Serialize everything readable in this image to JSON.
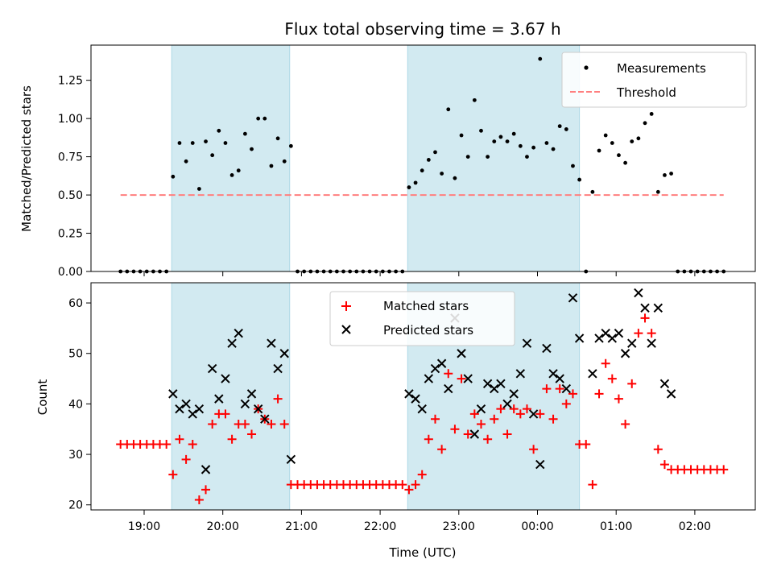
{
  "chart_data": [
    {
      "type": "scatter",
      "title": "Flux total observing time = 3.67 h",
      "ylabel": "Matched/Predicted stars",
      "xlabel": "",
      "ylim": [
        0,
        1.48
      ],
      "yticks": [
        "0.00",
        "0.25",
        "0.50",
        "0.75",
        "1.00",
        "1.25"
      ],
      "legend": {
        "position": "top-right",
        "entries": [
          "Measurements",
          "Threshold"
        ]
      },
      "threshold": 0.5,
      "colors": {
        "points": "#000000",
        "threshold": "#ff7f7f",
        "shade": "#add8e6"
      },
      "shaded_intervals": [
        [
          "19:21",
          "20:51"
        ],
        [
          "22:21",
          "00:32"
        ]
      ],
      "series": [
        {
          "name": "Measurements",
          "points": [
            [
              "18:42",
              0
            ],
            [
              "18:47",
              0
            ],
            [
              "18:52",
              0
            ],
            [
              "18:57",
              0
            ],
            [
              "19:02",
              0
            ],
            [
              "19:07",
              0
            ],
            [
              "19:12",
              0
            ],
            [
              "19:17",
              0
            ],
            [
              "19:22",
              0.62
            ],
            [
              "19:27",
              0.84
            ],
            [
              "19:32",
              0.72
            ],
            [
              "19:37",
              0.84
            ],
            [
              "19:42",
              0.54
            ],
            [
              "19:47",
              0.85
            ],
            [
              "19:52",
              0.76
            ],
            [
              "19:57",
              0.92
            ],
            [
              "20:02",
              0.84
            ],
            [
              "20:07",
              0.63
            ],
            [
              "20:12",
              0.66
            ],
            [
              "20:17",
              0.9
            ],
            [
              "20:22",
              0.8
            ],
            [
              "20:27",
              1.0
            ],
            [
              "20:32",
              1.0
            ],
            [
              "20:37",
              0.69
            ],
            [
              "20:42",
              0.87
            ],
            [
              "20:47",
              0.72
            ],
            [
              "20:52",
              0.82
            ],
            [
              "20:57",
              0
            ],
            [
              "21:02",
              0
            ],
            [
              "21:07",
              0
            ],
            [
              "21:12",
              0
            ],
            [
              "21:17",
              0
            ],
            [
              "21:22",
              0
            ],
            [
              "21:27",
              0
            ],
            [
              "21:32",
              0
            ],
            [
              "21:37",
              0
            ],
            [
              "21:42",
              0
            ],
            [
              "21:47",
              0
            ],
            [
              "21:52",
              0
            ],
            [
              "21:57",
              0
            ],
            [
              "22:02",
              0
            ],
            [
              "22:07",
              0
            ],
            [
              "22:12",
              0
            ],
            [
              "22:17",
              0
            ],
            [
              "22:22",
              0.55
            ],
            [
              "22:27",
              0.58
            ],
            [
              "22:32",
              0.66
            ],
            [
              "22:37",
              0.73
            ],
            [
              "22:42",
              0.78
            ],
            [
              "22:47",
              0.64
            ],
            [
              "22:52",
              1.06
            ],
            [
              "22:57",
              0.61
            ],
            [
              "23:02",
              0.89
            ],
            [
              "23:07",
              0.75
            ],
            [
              "23:12",
              1.12
            ],
            [
              "23:17",
              0.92
            ],
            [
              "23:22",
              0.75
            ],
            [
              "23:27",
              0.85
            ],
            [
              "23:32",
              0.88
            ],
            [
              "23:37",
              0.85
            ],
            [
              "23:42",
              0.9
            ],
            [
              "23:47",
              0.82
            ],
            [
              "23:52",
              0.75
            ],
            [
              "23:57",
              0.81
            ],
            [
              "00:02",
              1.39
            ],
            [
              "00:07",
              0.84
            ],
            [
              "00:12",
              0.8
            ],
            [
              "00:17",
              0.95
            ],
            [
              "00:22",
              0.93
            ],
            [
              "00:27",
              0.69
            ],
            [
              "00:32",
              0.6
            ],
            [
              "00:37",
              0
            ],
            [
              "00:42",
              0.52
            ],
            [
              "00:47",
              0.79
            ],
            [
              "00:52",
              0.89
            ],
            [
              "00:57",
              0.84
            ],
            [
              "01:02",
              0.76
            ],
            [
              "01:07",
              0.71
            ],
            [
              "01:12",
              0.85
            ],
            [
              "01:17",
              0.87
            ],
            [
              "01:22",
              0.97
            ],
            [
              "01:27",
              1.03
            ],
            [
              "01:32",
              0.52
            ],
            [
              "01:37",
              0.63
            ],
            [
              "01:42",
              0.64
            ],
            [
              "01:47",
              0
            ],
            [
              "01:52",
              0
            ],
            [
              "01:57",
              0
            ],
            [
              "02:02",
              0
            ],
            [
              "02:07",
              0
            ],
            [
              "02:12",
              0
            ],
            [
              "02:17",
              0
            ],
            [
              "02:22",
              0
            ]
          ]
        },
        {
          "name": "Threshold",
          "points": [
            [
              "18:42",
              0.5
            ],
            [
              "02:22",
              0.5
            ]
          ]
        }
      ]
    },
    {
      "type": "scatter",
      "title": "",
      "ylabel": "Count",
      "xlabel": "Time (UTC)",
      "ylim": [
        19,
        64
      ],
      "yticks": [
        "20",
        "30",
        "40",
        "50",
        "60"
      ],
      "xticks": [
        "19:00",
        "20:00",
        "21:00",
        "22:00",
        "23:00",
        "00:00",
        "01:00",
        "02:00"
      ],
      "legend": {
        "position": "top-center",
        "entries": [
          "Matched stars",
          "Predicted stars"
        ]
      },
      "colors": {
        "matched": "#ff0000",
        "predicted": "#000000"
      },
      "series": [
        {
          "name": "Matched stars",
          "points": [
            [
              "18:42",
              32
            ],
            [
              "18:47",
              32
            ],
            [
              "18:52",
              32
            ],
            [
              "18:57",
              32
            ],
            [
              "19:02",
              32
            ],
            [
              "19:07",
              32
            ],
            [
              "19:12",
              32
            ],
            [
              "19:17",
              32
            ],
            [
              "19:22",
              26
            ],
            [
              "19:27",
              33
            ],
            [
              "19:32",
              29
            ],
            [
              "19:37",
              32
            ],
            [
              "19:42",
              21
            ],
            [
              "19:47",
              23
            ],
            [
              "19:52",
              36
            ],
            [
              "19:57",
              38
            ],
            [
              "20:02",
              38
            ],
            [
              "20:07",
              33
            ],
            [
              "20:12",
              36
            ],
            [
              "20:17",
              36
            ],
            [
              "20:22",
              34
            ],
            [
              "20:27",
              39
            ],
            [
              "20:32",
              37
            ],
            [
              "20:37",
              36
            ],
            [
              "20:42",
              41
            ],
            [
              "20:47",
              36
            ],
            [
              "20:52",
              24
            ],
            [
              "20:57",
              24
            ],
            [
              "21:02",
              24
            ],
            [
              "21:07",
              24
            ],
            [
              "21:12",
              24
            ],
            [
              "21:17",
              24
            ],
            [
              "21:22",
              24
            ],
            [
              "21:27",
              24
            ],
            [
              "21:32",
              24
            ],
            [
              "21:37",
              24
            ],
            [
              "21:42",
              24
            ],
            [
              "21:47",
              24
            ],
            [
              "21:52",
              24
            ],
            [
              "21:57",
              24
            ],
            [
              "22:02",
              24
            ],
            [
              "22:07",
              24
            ],
            [
              "22:12",
              24
            ],
            [
              "22:17",
              24
            ],
            [
              "22:22",
              23
            ],
            [
              "22:27",
              24
            ],
            [
              "22:32",
              26
            ],
            [
              "22:37",
              33
            ],
            [
              "22:42",
              37
            ],
            [
              "22:47",
              31
            ],
            [
              "22:52",
              46
            ],
            [
              "22:57",
              35
            ],
            [
              "23:02",
              45
            ],
            [
              "23:07",
              34
            ],
            [
              "23:12",
              38
            ],
            [
              "23:17",
              36
            ],
            [
              "23:22",
              33
            ],
            [
              "23:27",
              37
            ],
            [
              "23:32",
              39
            ],
            [
              "23:37",
              34
            ],
            [
              "23:42",
              39
            ],
            [
              "23:47",
              38
            ],
            [
              "23:52",
              39
            ],
            [
              "23:57",
              31
            ],
            [
              "00:02",
              38
            ],
            [
              "00:07",
              43
            ],
            [
              "00:12",
              37
            ],
            [
              "00:17",
              43
            ],
            [
              "00:22",
              40
            ],
            [
              "00:27",
              42
            ],
            [
              "00:32",
              32
            ],
            [
              "00:37",
              32
            ],
            [
              "00:42",
              24
            ],
            [
              "00:47",
              42
            ],
            [
              "00:52",
              48
            ],
            [
              "00:57",
              45
            ],
            [
              "01:02",
              41
            ],
            [
              "01:07",
              36
            ],
            [
              "01:12",
              44
            ],
            [
              "01:17",
              54
            ],
            [
              "01:22",
              57
            ],
            [
              "01:27",
              54
            ],
            [
              "01:32",
              31
            ],
            [
              "01:37",
              28
            ],
            [
              "01:42",
              27
            ],
            [
              "01:47",
              27
            ],
            [
              "01:52",
              27
            ],
            [
              "01:57",
              27
            ],
            [
              "02:02",
              27
            ],
            [
              "02:07",
              27
            ],
            [
              "02:12",
              27
            ],
            [
              "02:17",
              27
            ],
            [
              "02:22",
              27
            ]
          ]
        },
        {
          "name": "Predicted stars",
          "points": [
            [
              "19:22",
              42
            ],
            [
              "19:27",
              39
            ],
            [
              "19:32",
              40
            ],
            [
              "19:37",
              38
            ],
            [
              "19:42",
              39
            ],
            [
              "19:47",
              27
            ],
            [
              "19:52",
              47
            ],
            [
              "19:57",
              41
            ],
            [
              "20:02",
              45
            ],
            [
              "20:07",
              52
            ],
            [
              "20:12",
              54
            ],
            [
              "20:17",
              40
            ],
            [
              "20:22",
              42
            ],
            [
              "20:27",
              39
            ],
            [
              "20:32",
              37
            ],
            [
              "20:37",
              52
            ],
            [
              "20:42",
              47
            ],
            [
              "20:47",
              50
            ],
            [
              "20:52",
              29
            ],
            [
              "22:22",
              42
            ],
            [
              "22:27",
              41
            ],
            [
              "22:32",
              39
            ],
            [
              "22:37",
              45
            ],
            [
              "22:42",
              47
            ],
            [
              "22:47",
              48
            ],
            [
              "22:52",
              43
            ],
            [
              "22:57",
              57
            ],
            [
              "23:02",
              50
            ],
            [
              "23:07",
              45
            ],
            [
              "23:12",
              34
            ],
            [
              "23:17",
              39
            ],
            [
              "23:22",
              44
            ],
            [
              "23:27",
              43
            ],
            [
              "23:32",
              44
            ],
            [
              "23:37",
              40
            ],
            [
              "23:42",
              42
            ],
            [
              "23:47",
              46
            ],
            [
              "23:52",
              52
            ],
            [
              "23:57",
              38
            ],
            [
              "00:02",
              28
            ],
            [
              "00:07",
              51
            ],
            [
              "00:12",
              46
            ],
            [
              "00:17",
              45
            ],
            [
              "00:22",
              43
            ],
            [
              "00:27",
              61
            ],
            [
              "00:32",
              53
            ],
            [
              "00:42",
              46
            ],
            [
              "00:47",
              53
            ],
            [
              "00:52",
              54
            ],
            [
              "00:57",
              53
            ],
            [
              "01:02",
              54
            ],
            [
              "01:07",
              50
            ],
            [
              "01:12",
              52
            ],
            [
              "01:17",
              62
            ],
            [
              "01:22",
              59
            ],
            [
              "01:27",
              52
            ],
            [
              "01:32",
              59
            ],
            [
              "01:37",
              44
            ],
            [
              "01:42",
              42
            ]
          ]
        }
      ]
    }
  ]
}
